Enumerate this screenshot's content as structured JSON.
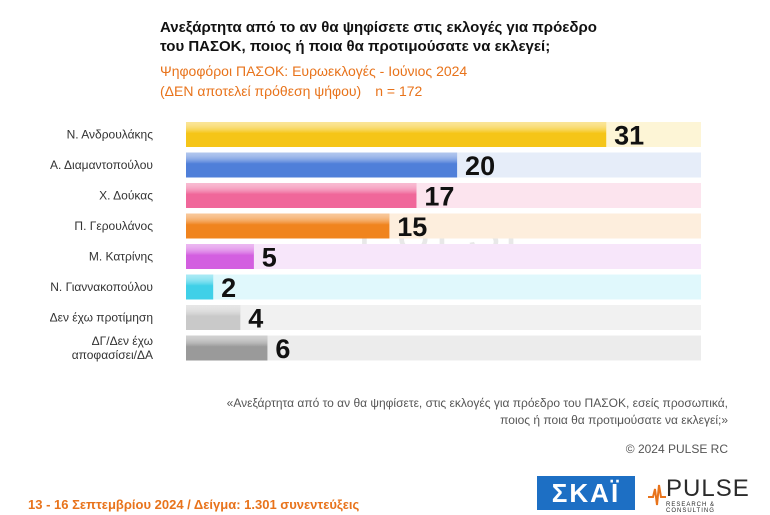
{
  "header": {
    "title_line1": "Ανεξάρτητα από το αν θα ψηφίσετε στις εκλογές για πρόεδρο",
    "title_line2": "του ΠΑΣΟΚ, ποιος ή ποια θα προτιμούσατε να εκλεγεί;",
    "subtitle_line1": "Ψηφοφόροι ΠΑΣΟΚ: Ευρωεκλογές - Ιούνιος 2024",
    "subtitle_line2": "(ΔΕΝ αποτελεί πρόθεση ψήφου)",
    "sample_n": "n = 172"
  },
  "chart_data": {
    "type": "bar",
    "orientation": "horizontal",
    "categories": [
      "Ν. Ανδρουλάκης",
      "Α. Διαμαντοπούλου",
      "Χ. Δούκας",
      "Π. Γερουλάνος",
      "Μ. Κατρίνης",
      "Ν. Γιαννακοπούλου",
      "Δεν έχω προτίμηση",
      "ΔΓ/Δεν έχω αποφασίσει/ΔΑ"
    ],
    "values": [
      31,
      20,
      17,
      15,
      5,
      2,
      4,
      6
    ],
    "value_labels": [
      "31",
      "20",
      "17",
      "15",
      "5",
      "2",
      "4",
      "6"
    ],
    "colors": [
      "#f5c518",
      "#4f7fd9",
      "#f0679a",
      "#f0841e",
      "#d35fe0",
      "#3fd0e8",
      "#c9c9c9",
      "#9a9a9a"
    ],
    "track_colors": [
      "#fdf5d6",
      "#e6edf9",
      "#fce4ee",
      "#fdeedd",
      "#f7e6fa",
      "#e0f8fc",
      "#f1f1f1",
      "#ececec"
    ],
    "xlim": [
      0,
      38
    ],
    "grid": false,
    "legend": "none"
  },
  "watermark": {
    "main": "PULSE",
    "sub": "RESEARCH & CONSULTING"
  },
  "footnote": {
    "line1": "«Ανεξάρτητα από το αν θα ψηφίσετε, στις εκλογές για πρόεδρο του ΠΑΣΟΚ, εσείς προσωπικά,",
    "line2": "ποιος ή ποια θα προτιμούσατε να εκλεγεί;»"
  },
  "copyright": "© 2024 PULSE RC",
  "fieldwork": "13 - 16 Σεπτεμβρίου 2024  /  Δείγμα:  1.301 συνεντεύξεις",
  "logos": {
    "skai": "ΣΚΑΪ",
    "pulse_name": "PULSE",
    "pulse_sub": "RESEARCH & CONSULTING"
  }
}
